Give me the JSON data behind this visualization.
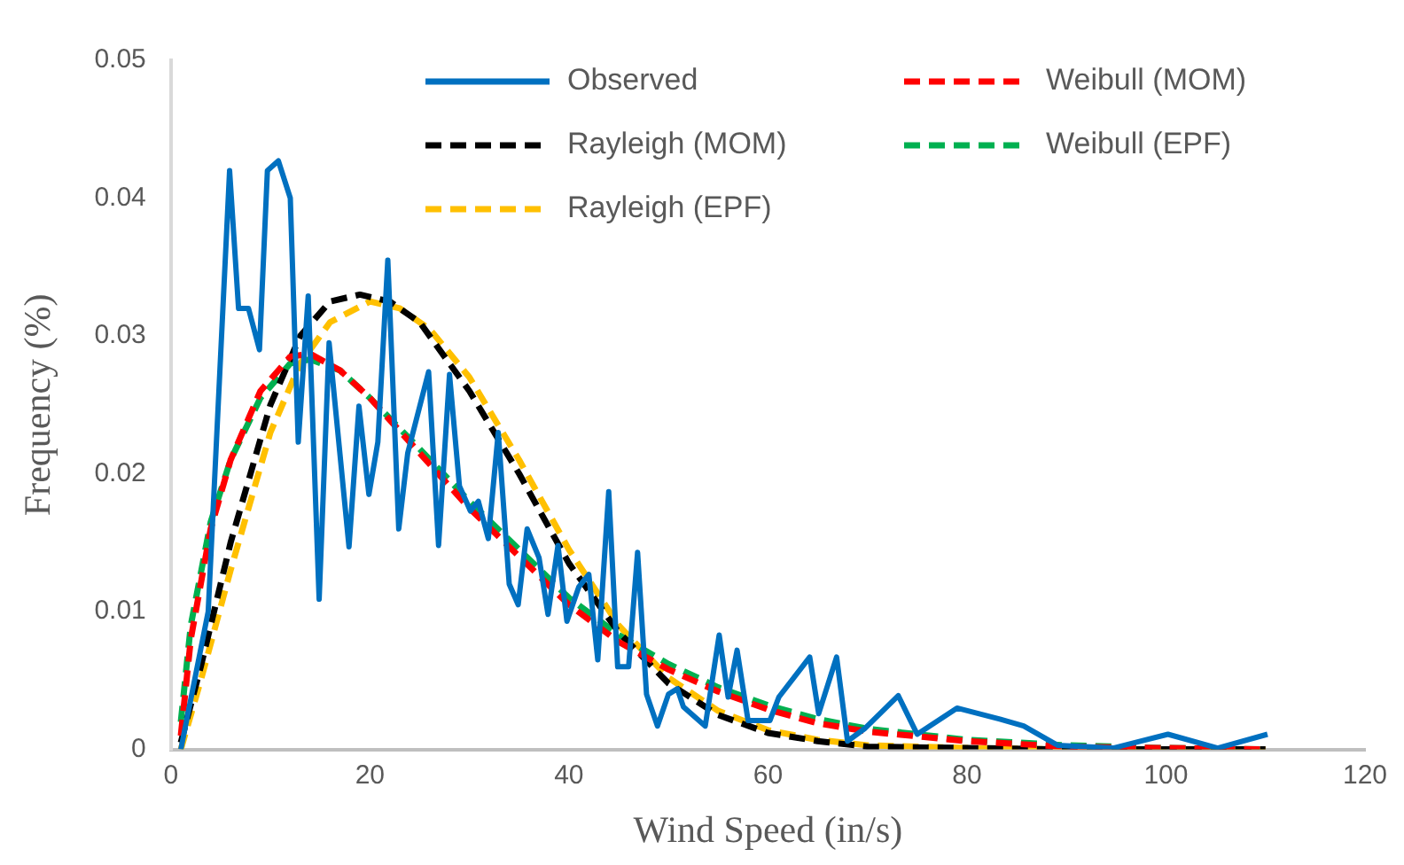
{
  "chart_data": {
    "type": "line",
    "xlabel": "Wind Speed (in/s)",
    "ylabel": "Frequency (%)",
    "xlim": [
      0,
      120
    ],
    "xticks": [
      0,
      20,
      40,
      60,
      80,
      100,
      120
    ],
    "ylim": [
      0,
      0.05
    ],
    "yticks": [
      0,
      0.01,
      0.02,
      0.03,
      0.04,
      0.05
    ],
    "grid": false,
    "legend": "top right",
    "marker": "none",
    "series": [
      {
        "name": "Observed",
        "color": "#0070c0",
        "line_style": "solid",
        "x": [
          1,
          3.75,
          5.9,
          6.8,
          7.8,
          8.9,
          9.7,
          10.8,
          12,
          12.8,
          13.8,
          14.9,
          15.9,
          17.9,
          18.9,
          19.9,
          20.8,
          21.8,
          22.9,
          23.8,
          25.9,
          26.9,
          28,
          29,
          30.1,
          30.9,
          31.9,
          32.9,
          34,
          34.9,
          35.8,
          37,
          37.9,
          38.9,
          39.8,
          41,
          42,
          42.9,
          44,
          44.9,
          46,
          46.9,
          47.8,
          48.9,
          50,
          50.9,
          51.5,
          53.7,
          55.1,
          56,
          56.9,
          58,
          60.2,
          61.1,
          64.2,
          65.1,
          66.9,
          68,
          69.7,
          73.1,
          75,
          79,
          83.3,
          85.7,
          89.1,
          94.7,
          100.2,
          105.2,
          110.2
        ],
        "values": [
          0,
          0.01,
          0.042,
          0.032,
          0.032,
          0.029,
          0.042,
          0.0427,
          0.04,
          0.0223,
          0.0329,
          0.0109,
          0.0295,
          0.0147,
          0.0249,
          0.0185,
          0.0223,
          0.0355,
          0.016,
          0.0215,
          0.0274,
          0.0148,
          0.0272,
          0.0191,
          0.0173,
          0.018,
          0.0153,
          0.023,
          0.012,
          0.0105,
          0.016,
          0.0139,
          0.0098,
          0.0148,
          0.0093,
          0.0118,
          0.0127,
          0.0065,
          0.0187,
          0.006,
          0.006,
          0.0143,
          0.004,
          0.0017,
          0.004,
          0.0044,
          0.0031,
          0.0017,
          0.0083,
          0.0038,
          0.0072,
          0.0021,
          0.0021,
          0.0038,
          0.0067,
          0.0026,
          0.0067,
          0.0006,
          0.0015,
          0.0039,
          0.0011,
          0.003,
          0.0022,
          0.0017,
          0.0003,
          0.0001,
          0.0011,
          0.0001,
          0.0011
        ]
      },
      {
        "name": "Weibull (MOM)",
        "color": "#ff0000",
        "line_style": "dashed",
        "x": [
          1,
          2,
          4,
          6,
          9,
          12,
          14,
          17,
          20,
          25,
          30,
          35,
          40,
          45,
          50,
          55,
          60,
          65,
          70,
          80,
          90,
          100,
          110
        ],
        "values": [
          0.001,
          0.008,
          0.016,
          0.021,
          0.026,
          0.0285,
          0.0287,
          0.0275,
          0.0255,
          0.0215,
          0.0175,
          0.014,
          0.0105,
          0.0078,
          0.0058,
          0.0042,
          0.0029,
          0.0019,
          0.0013,
          0.0006,
          0.0002,
          0.0001,
          0
        ]
      },
      {
        "name": "Rayleigh (MOM)",
        "color": "#000000",
        "line_style": "dashed",
        "x": [
          1,
          3,
          6,
          10,
          13,
          16,
          19,
          22,
          25,
          30,
          35,
          40,
          45,
          50,
          55,
          60,
          65,
          70,
          80,
          90,
          110
        ],
        "values": [
          0.0005,
          0.006,
          0.015,
          0.025,
          0.03,
          0.0325,
          0.033,
          0.0325,
          0.031,
          0.026,
          0.02,
          0.0135,
          0.0085,
          0.0048,
          0.0025,
          0.0012,
          0.0006,
          0.0002,
          0.0001,
          0,
          0
        ]
      },
      {
        "name": "Weibull (EPF)",
        "color": "#00b050",
        "line_style": "dashed",
        "x": [
          1,
          2,
          4,
          6,
          9,
          12,
          14,
          17,
          20,
          25,
          30,
          35,
          40,
          45,
          50,
          55,
          60,
          65,
          70,
          80,
          90,
          100,
          110
        ],
        "values": [
          0.002,
          0.009,
          0.0165,
          0.021,
          0.0255,
          0.028,
          0.0283,
          0.0275,
          0.0255,
          0.0218,
          0.018,
          0.0145,
          0.011,
          0.0083,
          0.0062,
          0.0045,
          0.0032,
          0.0022,
          0.0015,
          0.0007,
          0.0003,
          0.0001,
          0
        ]
      },
      {
        "name": "Rayleigh (EPF)",
        "color": "#ffc000",
        "line_style": "dashed",
        "x": [
          1,
          3,
          6,
          10,
          13,
          16,
          20,
          23,
          26,
          30,
          35,
          40,
          45,
          50,
          55,
          60,
          65,
          70,
          80,
          90,
          110
        ],
        "values": [
          0,
          0.005,
          0.013,
          0.023,
          0.028,
          0.031,
          0.0325,
          0.032,
          0.0305,
          0.027,
          0.021,
          0.0145,
          0.009,
          0.0052,
          0.0028,
          0.0014,
          0.0007,
          0.0003,
          0.0001,
          0,
          0
        ]
      }
    ]
  }
}
